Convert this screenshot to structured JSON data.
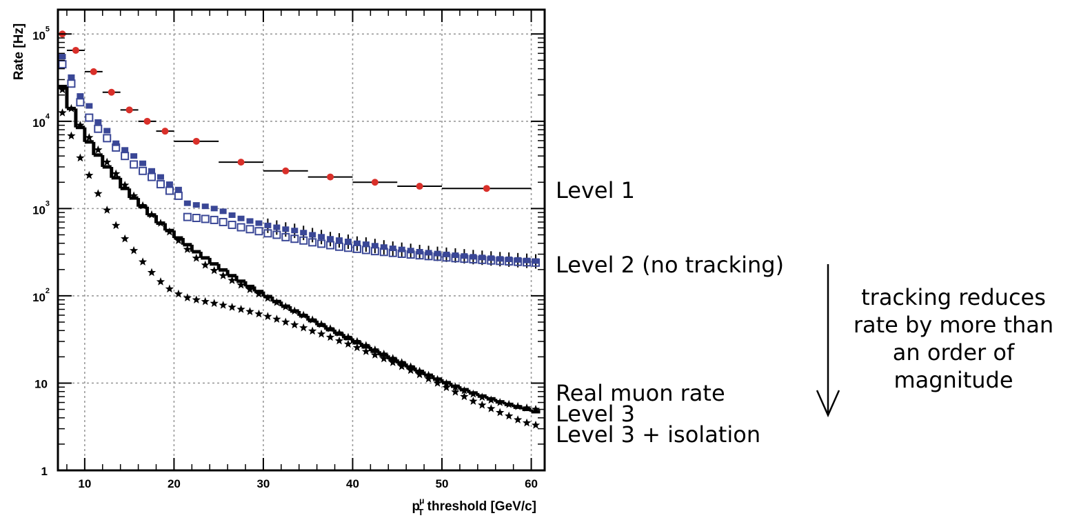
{
  "chart_data": {
    "type": "scatter",
    "title": "",
    "xlabel": {
      "main": "p",
      "sub": "T",
      "sup": "μ",
      "rest": " threshold [GeV/c]"
    },
    "ylabel": "Rate [Hz]",
    "x_scale": "linear",
    "y_scale": "log",
    "xlim": [
      7,
      61.5
    ],
    "ylim": [
      1,
      190000
    ],
    "grid": true,
    "x_ticks": [
      {
        "value": 10,
        "label": "10"
      },
      {
        "value": 20,
        "label": "20"
      },
      {
        "value": 30,
        "label": "30"
      },
      {
        "value": 40,
        "label": "40"
      },
      {
        "value": 50,
        "label": "50"
      },
      {
        "value": 60,
        "label": "60"
      }
    ],
    "y_ticks": [
      {
        "value": 1,
        "base": "1",
        "exp": ""
      },
      {
        "value": 10,
        "base": "10",
        "exp": ""
      },
      {
        "value": 100,
        "base": "10",
        "exp": "2"
      },
      {
        "value": 1000,
        "base": "10",
        "exp": "3"
      },
      {
        "value": 10000,
        "base": "10",
        "exp": "4"
      },
      {
        "value": 100000,
        "base": "10",
        "exp": "5"
      }
    ],
    "series": [
      {
        "name": "Level 1",
        "color": "#d9302a",
        "marker": "circle",
        "x": [
          7.5,
          9,
          11,
          13,
          15,
          17,
          19,
          22.5,
          27.5,
          32.5,
          37.5,
          42.5,
          47.5,
          55
        ],
        "xerr": [
          0.5,
          1,
          1,
          1,
          1,
          1,
          1,
          2.5,
          2.5,
          2.5,
          2.5,
          2.5,
          2.5,
          5
        ],
        "y": [
          100000,
          65000,
          37000,
          21500,
          13500,
          10000,
          7700,
          5900,
          3400,
          2700,
          2300,
          2000,
          1800,
          1700
        ]
      },
      {
        "name": "Level 2 (no tracking)",
        "color": "#3a4796",
        "marker": "filled-square",
        "x": [
          7.5,
          8.5,
          9.5,
          10.5,
          11.5,
          12.5,
          13.5,
          14.5,
          15.5,
          16.5,
          17.5,
          18.5,
          19.5,
          20.5,
          21.5,
          22.5,
          23.5,
          24.5,
          25.5,
          26.5,
          27.5,
          28.5,
          29.5,
          30.5,
          31.5,
          32.5,
          33.5,
          34.5,
          35.5,
          36.5,
          37.5,
          38.5,
          39.5,
          40.5,
          41.5,
          42.5,
          43.5,
          44.5,
          45.5,
          46.5,
          47.5,
          48.5,
          49.5,
          50.5,
          51.5,
          52.5,
          53.5,
          54.5,
          55.5,
          56.5,
          57.5,
          58.5,
          59.5,
          60.5
        ],
        "y": [
          55000,
          32000,
          19500,
          15000,
          9800,
          7800,
          5600,
          4700,
          4000,
          3300,
          2700,
          2300,
          1900,
          1650,
          1150,
          1100,
          1060,
          1000,
          930,
          840,
          770,
          720,
          680,
          640,
          610,
          580,
          560,
          530,
          500,
          475,
          450,
          435,
          420,
          400,
          390,
          375,
          362,
          350,
          340,
          330,
          320,
          312,
          305,
          298,
          292,
          286,
          280,
          275,
          270,
          265,
          262,
          258,
          254,
          250
        ]
      },
      {
        "name": "",
        "color": "#3a4796",
        "marker": "open-square",
        "x": [
          7.5,
          8.5,
          9.5,
          10.5,
          11.5,
          12.5,
          13.5,
          14.5,
          15.5,
          16.5,
          17.5,
          18.5,
          19.5,
          20.5,
          21.5,
          22.5,
          23.5,
          24.5,
          25.5,
          26.5,
          27.5,
          28.5,
          29.5,
          30.5,
          31.5,
          32.5,
          33.5,
          34.5,
          35.5,
          36.5,
          37.5,
          38.5,
          39.5,
          40.5,
          41.5,
          42.5,
          43.5,
          44.5,
          45.5,
          46.5,
          47.5,
          48.5,
          49.5,
          50.5,
          51.5,
          52.5,
          53.5,
          54.5,
          55.5,
          56.5,
          57.5,
          58.5,
          59.5,
          60.5
        ],
        "y": [
          45000,
          27000,
          16500,
          11000,
          8200,
          6400,
          5000,
          4000,
          3200,
          2700,
          2300,
          1900,
          1600,
          1400,
          800,
          780,
          760,
          740,
          700,
          650,
          610,
          580,
          550,
          520,
          500,
          470,
          450,
          430,
          410,
          395,
          380,
          365,
          355,
          345,
          335,
          325,
          318,
          310,
          303,
          297,
          291,
          285,
          280,
          275,
          270,
          266,
          262,
          258,
          254,
          251,
          248,
          245,
          242,
          240
        ]
      },
      {
        "name": "Real muon rate",
        "color": "#000000",
        "marker": "step",
        "x": [
          7,
          8,
          9,
          10,
          11,
          12,
          13,
          14,
          15,
          16,
          17,
          18,
          19,
          20,
          21,
          22,
          23,
          24,
          25,
          26,
          27,
          28,
          29,
          30,
          31,
          32,
          33,
          34,
          35,
          36,
          37,
          38,
          39,
          40,
          41,
          42,
          43,
          44,
          45,
          46,
          47,
          48,
          49,
          50,
          51,
          52,
          53,
          54,
          55,
          56,
          57,
          58,
          59,
          60,
          61
        ],
        "y": [
          25000,
          14000,
          8500,
          5800,
          4100,
          3000,
          2250,
          1700,
          1320,
          1050,
          840,
          680,
          560,
          460,
          385,
          320,
          272,
          232,
          198,
          170,
          147,
          128,
          112,
          98,
          86,
          76,
          67,
          59,
          52,
          46,
          41,
          36.5,
          32.5,
          29,
          26,
          23.2,
          20.8,
          18.7,
          16.8,
          15.1,
          13.6,
          12.3,
          11.1,
          10.1,
          9.2,
          8.4,
          7.7,
          7.1,
          6.6,
          6.1,
          5.7,
          5.3,
          5.0,
          4.7,
          4.5
        ]
      },
      {
        "name": "Level 3",
        "color": "#000000",
        "marker": "star",
        "x": [
          7.5,
          8.5,
          9.5,
          10.5,
          11.5,
          12.5,
          13.5,
          14.5,
          15.5,
          16.5,
          17.5,
          18.5,
          19.5,
          20.5,
          21.5,
          22.5,
          23.5,
          24.5,
          25.5,
          26.5,
          27.5,
          28.5,
          29.5,
          30.5,
          31.5,
          32.5,
          33.5,
          34.5,
          35.5,
          36.5,
          37.5,
          38.5,
          39.5,
          40.5,
          41.5,
          42.5,
          43.5,
          44.5,
          45.5,
          46.5,
          47.5,
          48.5,
          49.5,
          50.5,
          51.5,
          52.5,
          53.5,
          54.5,
          55.5,
          56.5,
          57.5,
          58.5,
          59.5,
          60.5
        ],
        "y": [
          23000,
          14000,
          9000,
          6500,
          4700,
          3400,
          2500,
          1850,
          1400,
          1080,
          850,
          680,
          540,
          430,
          340,
          270,
          225,
          195,
          170,
          150,
          133,
          118,
          105,
          94,
          84,
          75,
          67,
          60,
          53,
          47,
          42,
          37.5,
          33.5,
          30,
          27,
          24,
          21.5,
          19.2,
          17.2,
          15.4,
          13.7,
          12.3,
          11.0,
          9.9,
          9.0,
          8.2,
          7.5,
          6.9,
          6.4,
          6.0,
          5.7,
          5.4,
          5.2,
          5.0
        ]
      },
      {
        "name": "Level 3 + isolation",
        "color": "#000000",
        "marker": "star",
        "x": [
          7.5,
          8.5,
          9.5,
          10.5,
          11.5,
          12.5,
          13.5,
          14.5,
          15.5,
          16.5,
          17.5,
          18.5,
          19.5,
          20.5,
          21.5,
          22.5,
          23.5,
          24.5,
          25.5,
          26.5,
          27.5,
          28.5,
          29.5,
          30.5,
          31.5,
          32.5,
          33.5,
          34.5,
          35.5,
          36.5,
          37.5,
          38.5,
          39.5,
          40.5,
          41.5,
          42.5,
          43.5,
          44.5,
          45.5,
          46.5,
          47.5,
          48.5,
          49.5,
          50.5,
          51.5,
          52.5,
          53.5,
          54.5,
          55.5,
          56.5,
          57.5,
          58.5,
          59.5,
          60.5
        ],
        "y": [
          12500,
          6800,
          3800,
          2400,
          1480,
          960,
          640,
          450,
          330,
          245,
          185,
          145,
          120,
          105,
          95,
          90,
          86,
          82,
          78,
          74,
          70,
          66,
          62,
          58,
          54,
          50,
          46.5,
          43,
          39.5,
          36.5,
          33.5,
          30.5,
          28,
          25.5,
          23,
          21,
          19,
          17.2,
          15.5,
          14,
          12.5,
          11.2,
          10,
          8.9,
          7.9,
          7,
          6.2,
          5.6,
          5.1,
          4.6,
          4.2,
          3.8,
          3.5,
          3.3
        ]
      }
    ],
    "annotations": {
      "level1": "Level 1",
      "level2": "Level 2 (no tracking)",
      "real_muon": "Real muon rate",
      "level3": "Level 3",
      "level3_iso": "Level 3 + isolation",
      "tracking_lines": [
        "tracking reduces",
        "rate by more than",
        "an order of",
        "magnitude"
      ]
    }
  }
}
